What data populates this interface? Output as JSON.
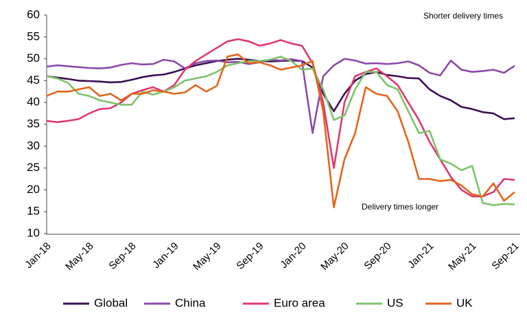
{
  "chart_data": {
    "type": "line",
    "annotations": [
      "Shorter delivery times",
      "Delivery times longer"
    ],
    "categories": [
      "Jan-18",
      null,
      null,
      null,
      "May-18",
      null,
      null,
      null,
      "Sep-18",
      null,
      null,
      null,
      "Jan-19",
      null,
      null,
      null,
      "May-19",
      null,
      null,
      null,
      "Sep-19",
      null,
      null,
      null,
      "Jan-20",
      null,
      null,
      null,
      "May-20",
      null,
      null,
      null,
      "Sep-20",
      null,
      null,
      null,
      "Jan-21",
      null,
      null,
      null,
      "May-21",
      null,
      null,
      null,
      "Sep-21"
    ],
    "series": [
      {
        "name": "Global",
        "color": "#3c1053",
        "values": [
          46,
          45.7,
          45.4,
          45,
          44.9,
          44.8,
          44.6,
          44.7,
          45.2,
          45.8,
          46.2,
          46.4,
          47,
          47.8,
          48.5,
          49,
          49.5,
          49.8,
          50,
          49.8,
          49.5,
          49.4,
          49.5,
          49.6,
          49.5,
          48,
          42,
          38,
          42,
          45,
          46.5,
          47,
          46.3,
          46,
          45.6,
          45.5,
          43,
          41.5,
          40.5,
          39,
          38.5,
          37.8,
          37.5,
          36.2,
          36.4
        ]
      },
      {
        "name": "China",
        "color": "#8b4aa8",
        "values": [
          48.2,
          48.5,
          48.3,
          48.1,
          47.9,
          47.8,
          48,
          48.6,
          49,
          48.7,
          48.8,
          49.8,
          49.4,
          47.8,
          49,
          49.5,
          49.6,
          49.2,
          49.3,
          48.8,
          49.2,
          49.8,
          49.6,
          49.9,
          49.5,
          33,
          46,
          48.5,
          50,
          49.6,
          48.9,
          49,
          48.8,
          49,
          49.4,
          48.5,
          46.8,
          46.2,
          49.6,
          47.5,
          47,
          47.2,
          47.5,
          46.8,
          48.4
        ]
      },
      {
        "name": "Euro area",
        "color": "#e0386c",
        "values": [
          35.8,
          35.5,
          35.8,
          36.2,
          37.5,
          38.5,
          38.7,
          40,
          42,
          42.8,
          43.5,
          42.5,
          44,
          47.5,
          49.5,
          51,
          52.5,
          54,
          54.5,
          54,
          53,
          53.5,
          54.3,
          53.5,
          53,
          49,
          40,
          25,
          40,
          46,
          47,
          47.8,
          46,
          44,
          40,
          36,
          31,
          27,
          23,
          20,
          18.5,
          18.5,
          19.5,
          22.5,
          22.3
        ]
      },
      {
        "name": "US",
        "color": "#7dc36b",
        "values": [
          46,
          45.5,
          44.5,
          42,
          41.5,
          40.5,
          40,
          39.5,
          39.5,
          42.5,
          41.8,
          42.5,
          43.5,
          45,
          45.5,
          46,
          47,
          48.5,
          49,
          49.5,
          49.5,
          49.8,
          50.5,
          49.5,
          47.5,
          47.8,
          43,
          36,
          37,
          43,
          47,
          47,
          44,
          43,
          38,
          33,
          33.5,
          27,
          26,
          24.5,
          25.5,
          17,
          16.5,
          16.8,
          16.7
        ]
      },
      {
        "name": "UK",
        "color": "#e3651d",
        "values": [
          41.5,
          42.5,
          42.5,
          43,
          43.5,
          41.5,
          42,
          40.5,
          42,
          42,
          42.8,
          42.5,
          42,
          42.3,
          44,
          42.5,
          43.8,
          50.5,
          51,
          49,
          49.2,
          48.5,
          47.5,
          48,
          48.5,
          49.5,
          38,
          16,
          27,
          33,
          43.5,
          42,
          41.5,
          38,
          31,
          22.5,
          22.5,
          22,
          22.3,
          21,
          19,
          18.5,
          21.5,
          17.5,
          19.5
        ]
      }
    ],
    "ylim": [
      10,
      60
    ],
    "yticks": [
      10,
      15,
      20,
      25,
      30,
      35,
      40,
      45,
      50,
      55,
      60
    ],
    "legend": "bottom"
  }
}
